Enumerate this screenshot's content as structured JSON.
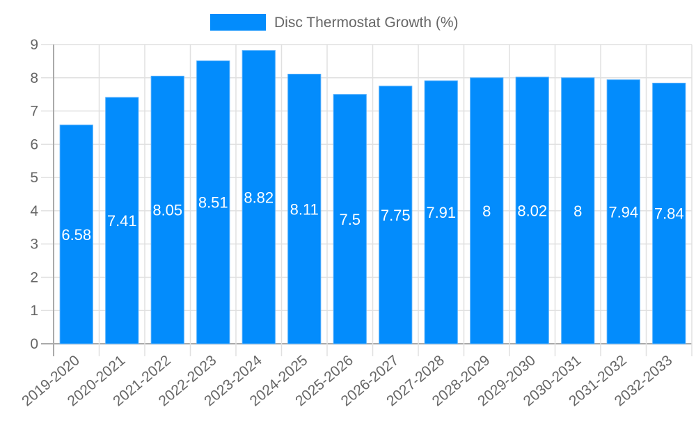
{
  "chart_data": {
    "type": "bar",
    "title": "",
    "xlabel": "",
    "ylabel": "",
    "categories": [
      "2019-2020",
      "2020-2021",
      "2021-2022",
      "2022-2023",
      "2023-2024",
      "2024-2025",
      "2025-2026",
      "2026-2027",
      "2027-2028",
      "2028-2029",
      "2029-2030",
      "2030-2031",
      "2031-2032",
      "2032-2033"
    ],
    "series": [
      {
        "name": "Disc Thermostat Growth (%)",
        "color": "#038cfc",
        "values": [
          6.58,
          7.41,
          8.05,
          8.51,
          8.82,
          8.11,
          7.5,
          7.75,
          7.91,
          8,
          8.02,
          8,
          7.94,
          7.84
        ],
        "labels": [
          "6.58",
          "7.41",
          "8.05",
          "8.51",
          "8.82",
          "8.11",
          "7.5",
          "7.75",
          "7.91",
          "8",
          "8.02",
          "8",
          "7.94",
          "7.84"
        ]
      }
    ],
    "ylim": [
      0,
      9
    ],
    "yticks": [
      "0",
      "1",
      "2",
      "3",
      "4",
      "5",
      "6",
      "7",
      "8",
      "9"
    ],
    "grid": true,
    "legend_position": "top",
    "data_labels": "inside-center",
    "x_tick_rotation": -40
  },
  "legend": {
    "label": "Disc Thermostat Growth (%)",
    "color": "#038cfc"
  },
  "colors": {
    "bar": "#038cfc",
    "bar_border": "#53aefc",
    "grid": "#e0e0e0",
    "axis": "#aaaaaa",
    "tick_text": "#666666",
    "data_label": "#ffffff"
  }
}
